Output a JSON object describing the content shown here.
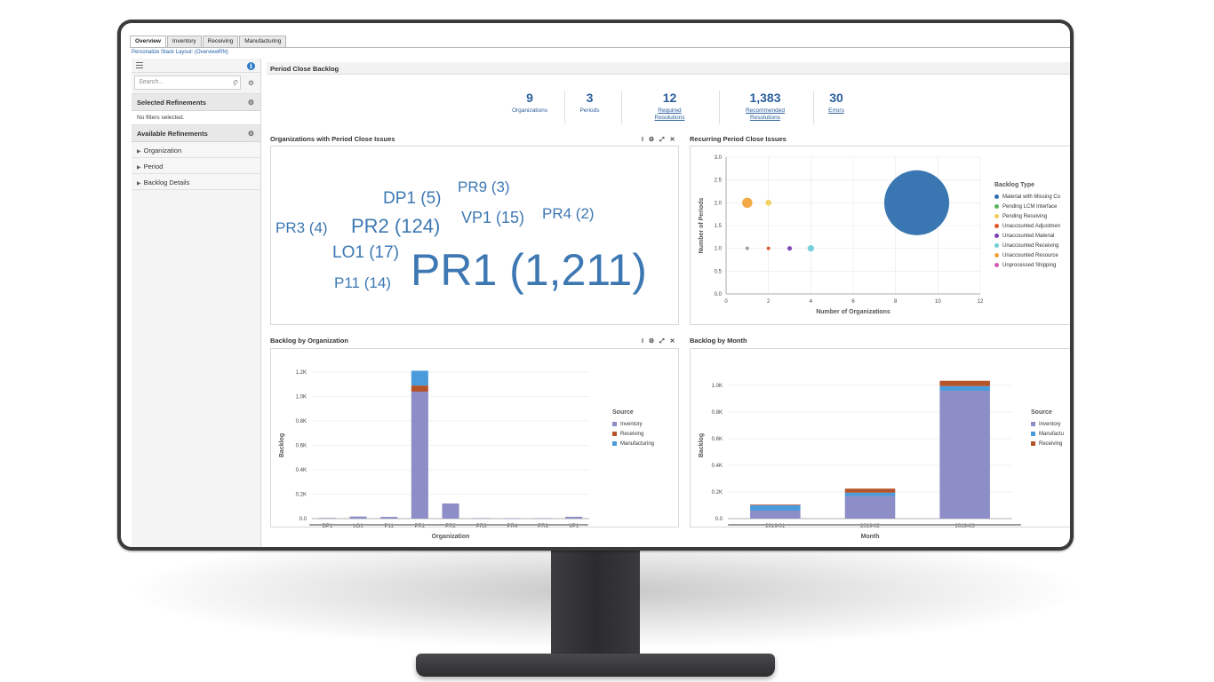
{
  "app": {
    "tabs": [
      "Overview",
      "Inventory",
      "Receiving",
      "Manufacturing"
    ],
    "active_tab": "Overview",
    "personalize_link": "Personalize Stack Layout: (OverviewRN)"
  },
  "sidebar": {
    "search_placeholder": "Search...",
    "selected_refinements_title": "Selected Refinements",
    "no_filters_text": "No filters selected.",
    "available_refinements_title": "Available Refinements",
    "items": [
      {
        "label": "Organization"
      },
      {
        "label": "Period"
      },
      {
        "label": "Backlog Details"
      }
    ]
  },
  "main": {
    "section_title": "Period Close Backlog",
    "kpis": [
      {
        "value": "9",
        "label": "Organizations",
        "label2": "",
        "link": false
      },
      {
        "value": "3",
        "label": "Periods",
        "label2": "",
        "link": false
      },
      {
        "value": "12",
        "label": "Required",
        "label2": "Resolutions",
        "link": true
      },
      {
        "value": "1,383",
        "label": "Recommended",
        "label2": "Resolutions",
        "link": true
      },
      {
        "value": "30",
        "label": "Errors",
        "label2": "",
        "link": true
      }
    ],
    "panels": {
      "org_issues_title": "Organizations with Period Close Issues",
      "recurring_title": "Recurring Period Close Issues",
      "backlog_org_title": "Backlog by Organization",
      "backlog_month_title": "Backlog by Month",
      "tools": "I ⚙ ⤢ ✕"
    },
    "tag_cloud": [
      {
        "text": "DP1 (5)"
      },
      {
        "text": "PR9 (3)"
      },
      {
        "text": "PR3 (4)"
      },
      {
        "text": "PR2 (124)"
      },
      {
        "text": "VP1 (15)"
      },
      {
        "text": "PR4 (2)"
      },
      {
        "text": "LO1 (17)"
      },
      {
        "text": "P11 (14)"
      },
      {
        "text": "PR1 (1,211)"
      }
    ]
  },
  "chart_data": [
    {
      "type": "scatter",
      "title": "Recurring Period Close Issues",
      "xlabel": "Number of Organizations",
      "ylabel": "Number of Periods",
      "xlim": [
        0,
        12
      ],
      "ylim": [
        0,
        3.0
      ],
      "x_ticks": [
        "0",
        "2",
        "4",
        "6",
        "8",
        "10",
        "12"
      ],
      "y_ticks": [
        "0.0",
        "0.5",
        "1.0",
        "1.5",
        "2.0",
        "2.5",
        "3.0"
      ],
      "legend_title": "Backlog Type",
      "legend": [
        {
          "name": "Material with Missing Co",
          "color": "#2f6fad"
        },
        {
          "name": "Pending LCM Interface",
          "color": "#5bb55b"
        },
        {
          "name": "Pending Receiving",
          "color": "#f2cd5c"
        },
        {
          "name": "Unaccounted Adjustmen",
          "color": "#e0572b"
        },
        {
          "name": "Unaccounted Material",
          "color": "#7b3fb8"
        },
        {
          "name": "Unaccounted Receiving",
          "color": "#6fd0d8"
        },
        {
          "name": "Unaccounted Resource",
          "color": "#f2a53c"
        },
        {
          "name": "Unprocessed Shipping",
          "color": "#d35ab7"
        }
      ],
      "points": [
        {
          "x": 9,
          "y": 2,
          "size": 1211,
          "color": "#2f6fad"
        },
        {
          "x": 1,
          "y": 2,
          "size": 30,
          "color": "#f2a53c"
        },
        {
          "x": 2,
          "y": 2,
          "size": 10,
          "color": "#f2cd5c"
        },
        {
          "x": 1,
          "y": 1,
          "size": 2,
          "color": "#999999"
        },
        {
          "x": 2,
          "y": 1,
          "size": 2,
          "color": "#e0572b"
        },
        {
          "x": 3,
          "y": 1,
          "size": 6,
          "color": "#7b3fb8"
        },
        {
          "x": 4,
          "y": 1,
          "size": 12,
          "color": "#6fd0d8"
        }
      ]
    },
    {
      "type": "bar",
      "stacked": true,
      "title": "Backlog by Organization",
      "xlabel": "Organization",
      "ylabel": "Backlog",
      "ylim": [
        0,
        1200
      ],
      "y_ticks": [
        "0.0",
        "0.2K",
        "0.4K",
        "0.6K",
        "0.8K",
        "1.0K",
        "1.2K"
      ],
      "categories": [
        "DP1",
        "LO1",
        "P11",
        "PR1",
        "PR2",
        "PR3",
        "PR4",
        "PR9",
        "VP1"
      ],
      "legend_title": "Source",
      "series": [
        {
          "name": "Inventory",
          "color": "#8d8dc8",
          "values": [
            5,
            17,
            14,
            1040,
            124,
            4,
            2,
            3,
            15
          ]
        },
        {
          "name": "Receiving",
          "color": "#b5532a",
          "values": [
            0,
            0,
            0,
            50,
            0,
            0,
            0,
            0,
            0
          ]
        },
        {
          "name": "Manufacturing",
          "color": "#4a9bdc",
          "values": [
            0,
            0,
            0,
            121,
            0,
            0,
            0,
            0,
            0
          ]
        }
      ]
    },
    {
      "type": "bar",
      "stacked": true,
      "title": "Backlog by Month",
      "xlabel": "Month",
      "ylabel": "Backlog",
      "ylim": [
        0,
        1100
      ],
      "y_ticks": [
        "0.0",
        "0.2K",
        "0.4K",
        "0.6K",
        "0.8K",
        "1.0K"
      ],
      "categories": [
        "2019-01",
        "2019-02",
        "2019-03"
      ],
      "legend_title": "Source",
      "series": [
        {
          "name": "Inventory",
          "color": "#8d8dc8",
          "values": [
            60,
            170,
            960
          ]
        },
        {
          "name": "Manufactu",
          "color": "#4a9bdc",
          "values": [
            40,
            25,
            35
          ]
        },
        {
          "name": "Receiving",
          "color": "#b5532a",
          "values": [
            5,
            30,
            40
          ]
        }
      ]
    }
  ]
}
